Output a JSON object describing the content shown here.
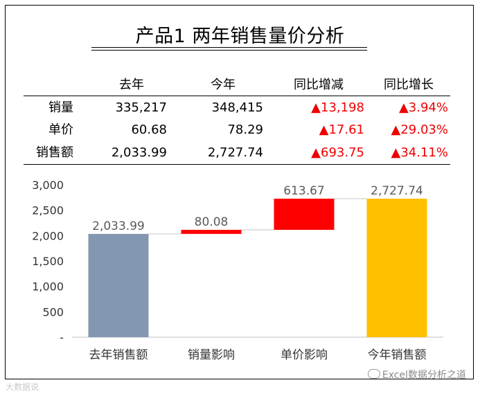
{
  "title": "产品1 两年销售量价分析",
  "table": {
    "headers": [
      "",
      "去年",
      "今年",
      "同比增减",
      "同比增长"
    ],
    "rows": [
      {
        "label": "销量",
        "last": "335,217",
        "this": "348,415",
        "diff": "▲13,198",
        "growth": "▲3.94%"
      },
      {
        "label": "单价",
        "last": "60.68",
        "this": "78.29",
        "diff": "▲17.61",
        "growth": "▲29.03%"
      },
      {
        "label": "销售额",
        "last": "2,033.99",
        "this": "2,727.74",
        "diff": "▲693.75",
        "growth": "▲34.11%"
      }
    ]
  },
  "chart_data": {
    "type": "bar",
    "subtype": "waterfall",
    "categories": [
      "去年销售额",
      "销量影响",
      "单价影响",
      "今年销售额"
    ],
    "bars": [
      {
        "base": 0,
        "value": 2033.99,
        "label": "2,033.99",
        "color": "#8497b0"
      },
      {
        "base": 2033.99,
        "value": 80.08,
        "label": "80.08",
        "color": "#ff0000"
      },
      {
        "base": 2114.07,
        "value": 613.67,
        "label": "613.67",
        "color": "#ff0000"
      },
      {
        "base": 0,
        "value": 2727.74,
        "label": "2,727.74",
        "color": "#ffc000"
      }
    ],
    "ylim": [
      0,
      3000
    ],
    "yticks": [
      0,
      500,
      1000,
      1500,
      2000,
      2500,
      3000
    ],
    "ytick_labels": [
      "-",
      "500",
      "1,000",
      "1,500",
      "2,000",
      "2,500",
      "3,000"
    ],
    "connector_color": "#d9d9d9",
    "grid": false
  },
  "watermark_left": "大数据说",
  "watermark_right": "Excel数据分析之道"
}
